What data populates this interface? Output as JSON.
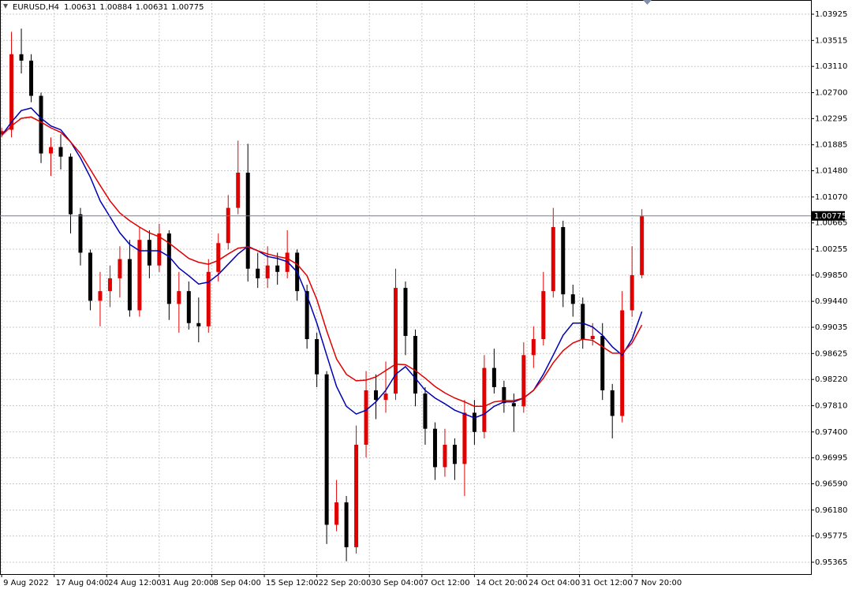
{
  "chart_data": {
    "type": "candlestick",
    "title": "EURUSD,H4",
    "header_values": [
      1.00631,
      1.00884,
      1.00631,
      1.00775
    ],
    "current_price": 1.00775,
    "x": [
      0,
      6,
      12,
      18,
      24,
      30,
      36,
      42,
      48,
      54,
      60,
      66,
      72,
      78,
      84,
      90,
      96,
      102,
      108,
      114,
      120,
      126,
      132,
      138,
      144,
      150,
      156,
      162,
      168,
      174,
      180,
      186,
      192,
      198,
      204,
      210,
      216,
      222,
      228,
      234,
      240,
      246,
      252,
      258,
      264,
      270,
      276,
      282,
      288,
      294,
      300,
      306,
      312,
      318,
      324,
      330,
      336,
      342,
      348,
      354,
      360,
      366,
      372,
      378,
      384,
      390
    ],
    "open": [
      1.0205,
      1.0212,
      1.033,
      1.032,
      1.0265,
      1.0175,
      1.0185,
      1.017,
      1.008,
      1.002,
      0.9945,
      0.996,
      0.998,
      1.001,
      0.993,
      1.004,
      1.0,
      1.005,
      0.994,
      0.996,
      0.991,
      0.9905,
      0.999,
      1.0035,
      1.009,
      1.0145,
      0.9995,
      0.998,
      1.0,
      0.999,
      1.002,
      0.996,
      0.9885,
      0.983,
      0.9595,
      0.963,
      0.956,
      0.972,
      0.9805,
      0.979,
      0.98,
      0.9965,
      0.989,
      0.98,
      0.9745,
      0.9685,
      0.972,
      0.969,
      0.977,
      0.974,
      0.984,
      0.981,
      0.9785,
      0.978,
      0.986,
      0.9885,
      0.996,
      1.006,
      0.9955,
      0.994,
      0.9885,
      0.989,
      0.9805,
      0.9765,
      0.993,
      0.9985
    ],
    "high": [
      1.0215,
      1.0365,
      1.037,
      1.033,
      1.027,
      1.02,
      1.0205,
      1.0175,
      1.009,
      1.0025,
      0.999,
      1.0,
      1.003,
      1.004,
      1.006,
      1.0055,
      1.0065,
      1.0055,
      0.999,
      0.9975,
      0.995,
      1.001,
      1.005,
      1.011,
      1.0195,
      1.019,
      1.002,
      1.003,
      1.002,
      1.0055,
      1.0025,
      0.997,
      0.9895,
      0.9835,
      0.9665,
      0.964,
      0.975,
      0.9835,
      0.983,
      0.985,
      0.9995,
      0.9975,
      0.99,
      0.981,
      0.9755,
      0.9745,
      0.973,
      0.979,
      0.979,
      0.986,
      0.987,
      0.982,
      0.98,
      0.988,
      0.9905,
      0.999,
      1.009,
      1.007,
      0.997,
      0.995,
      0.991,
      0.991,
      0.9815,
      0.996,
      1.003,
      1.0088
    ],
    "low": [
      1.02,
      1.02,
      1.03,
      1.0255,
      1.016,
      1.014,
      1.015,
      1.005,
      1.0,
      0.993,
      0.9905,
      0.9935,
      0.995,
      0.992,
      0.992,
      0.998,
      0.999,
      0.9915,
      0.9895,
      0.99,
      0.988,
      0.9895,
      0.9975,
      1.0025,
      1.008,
      0.9975,
      0.9965,
      0.9965,
      0.997,
      0.998,
      0.9945,
      0.987,
      0.981,
      0.9565,
      0.9585,
      0.9538,
      0.955,
      0.97,
      0.976,
      0.977,
      0.979,
      0.986,
      0.978,
      0.972,
      0.9665,
      0.967,
      0.9665,
      0.964,
      0.972,
      0.973,
      0.98,
      0.977,
      0.974,
      0.977,
      0.984,
      0.9875,
      0.995,
      0.9935,
      0.992,
      0.987,
      0.9875,
      0.979,
      0.973,
      0.9755,
      0.992,
      0.998
    ],
    "close": [
      1.021,
      1.033,
      1.032,
      1.0265,
      1.0175,
      1.0185,
      1.017,
      1.008,
      1.002,
      0.9945,
      0.996,
      0.998,
      1.001,
      0.993,
      1.004,
      1.0,
      1.005,
      0.994,
      0.996,
      0.991,
      0.9905,
      0.999,
      1.0035,
      1.009,
      1.0145,
      0.9995,
      0.998,
      1.0,
      0.999,
      1.002,
      0.996,
      0.9885,
      0.983,
      0.9595,
      0.963,
      0.956,
      0.972,
      0.9805,
      0.979,
      0.98,
      0.9965,
      0.989,
      0.98,
      0.9745,
      0.9685,
      0.972,
      0.969,
      0.977,
      0.974,
      0.984,
      0.981,
      0.9785,
      0.978,
      0.986,
      0.9885,
      0.996,
      1.006,
      0.9955,
      0.994,
      0.9885,
      0.989,
      0.9805,
      0.9765,
      0.993,
      0.9985,
      1.0077
    ],
    "up_color": "#e00000",
    "down_color": "#000000",
    "series": [
      {
        "color": "#0000b4",
        "values": [
          1.0203,
          1.0224,
          1.0242,
          1.0246,
          1.023,
          1.0218,
          1.0212,
          1.0193,
          1.0168,
          1.0138,
          1.0101,
          1.0076,
          1.0051,
          1.0033,
          1.0023,
          1.0023,
          1.0023,
          1.0014,
          0.9996,
          0.9984,
          0.9971,
          0.9974,
          0.9986,
          1.0002,
          1.0018,
          1.003,
          1.0023,
          1.0014,
          1.0011,
          1.0006,
          0.999,
          0.9953,
          0.991,
          0.986,
          0.9811,
          0.978,
          0.9768,
          0.9774,
          0.9787,
          0.9805,
          0.983,
          0.9842,
          0.9824,
          0.9805,
          0.9793,
          0.9784,
          0.9774,
          0.9768,
          0.9762,
          0.9768,
          0.978,
          0.9787,
          0.9787,
          0.9793,
          0.9805,
          0.983,
          0.986,
          0.9891,
          0.991,
          0.991,
          0.9904,
          0.9891,
          0.9873,
          0.986,
          0.9885,
          0.9928
        ]
      },
      {
        "color": "#e00000",
        "values": [
          1.0203,
          1.0218,
          1.023,
          1.0232,
          1.0224,
          1.0215,
          1.0208,
          1.0193,
          1.0175,
          1.015,
          1.0125,
          1.0101,
          1.0082,
          1.007,
          1.006,
          1.0051,
          1.0045,
          1.0035,
          1.0023,
          1.0011,
          1.0005,
          1.0002,
          1.0008,
          1.0018,
          1.0027,
          1.0029,
          1.0023,
          1.0018,
          1.0014,
          1.0011,
          1.0002,
          0.9984,
          0.9947,
          0.9898,
          0.9854,
          0.983,
          0.982,
          0.9821,
          0.9826,
          0.9836,
          0.9846,
          0.9845,
          0.9836,
          0.9824,
          0.9811,
          0.9801,
          0.9793,
          0.9787,
          0.978,
          0.978,
          0.9787,
          0.9789,
          0.9789,
          0.9793,
          0.9805,
          0.9824,
          0.9848,
          0.9867,
          0.9879,
          0.9885,
          0.9883,
          0.9873,
          0.9863,
          0.9863,
          0.9879,
          0.9907
        ]
      }
    ],
    "xlim": [
      -1,
      493
    ],
    "xticks": [
      {
        "value": 0,
        "label": "9 Aug 2022"
      },
      {
        "value": 32,
        "label": "17 Aug 04:00"
      },
      {
        "value": 64,
        "label": "24 Aug 12:00"
      },
      {
        "value": 96,
        "label": "31 Aug 20:00"
      },
      {
        "value": 128,
        "label": "8 Sep 04:00"
      },
      {
        "value": 160,
        "label": "15 Sep 12:00"
      },
      {
        "value": 192,
        "label": "22 Sep 20:00"
      },
      {
        "value": 224,
        "label": "30 Sep 04:00"
      },
      {
        "value": 256,
        "label": "7 Oct 12:00"
      },
      {
        "value": 288,
        "label": "14 Oct 20:00"
      },
      {
        "value": 320,
        "label": "24 Oct 04:00"
      },
      {
        "value": 352,
        "label": "31 Oct 12:00"
      },
      {
        "value": 384,
        "label": "7 Nov 20:00"
      }
    ],
    "ylim": [
      0.9518,
      1.04147
    ],
    "yticks": [
      1.03925,
      1.03515,
      {
        "value": 1.0311,
        "label": "1.03110"
      },
      {
        "value": 1.027,
        "label": "1.02700"
      },
      1.02295,
      1.01885,
      {
        "value": 1.0148,
        "label": "1.01480"
      },
      {
        "value": 1.0107,
        "label": "1.01070"
      },
      1.00665,
      1.00255,
      {
        "value": 0.9985,
        "label": "0.99850"
      },
      {
        "value": 0.9944,
        "label": "0.99440"
      },
      0.99035,
      0.98625,
      {
        "value": 0.9822,
        "label": "0.98220"
      },
      {
        "value": 0.9781,
        "label": "0.97810"
      },
      {
        "value": 0.974,
        "label": "0.97400"
      },
      0.96995,
      {
        "value": 0.9659,
        "label": "0.96590"
      },
      {
        "value": 0.9618,
        "label": "0.96180"
      },
      0.95775,
      0.95365
    ],
    "grid": true
  }
}
